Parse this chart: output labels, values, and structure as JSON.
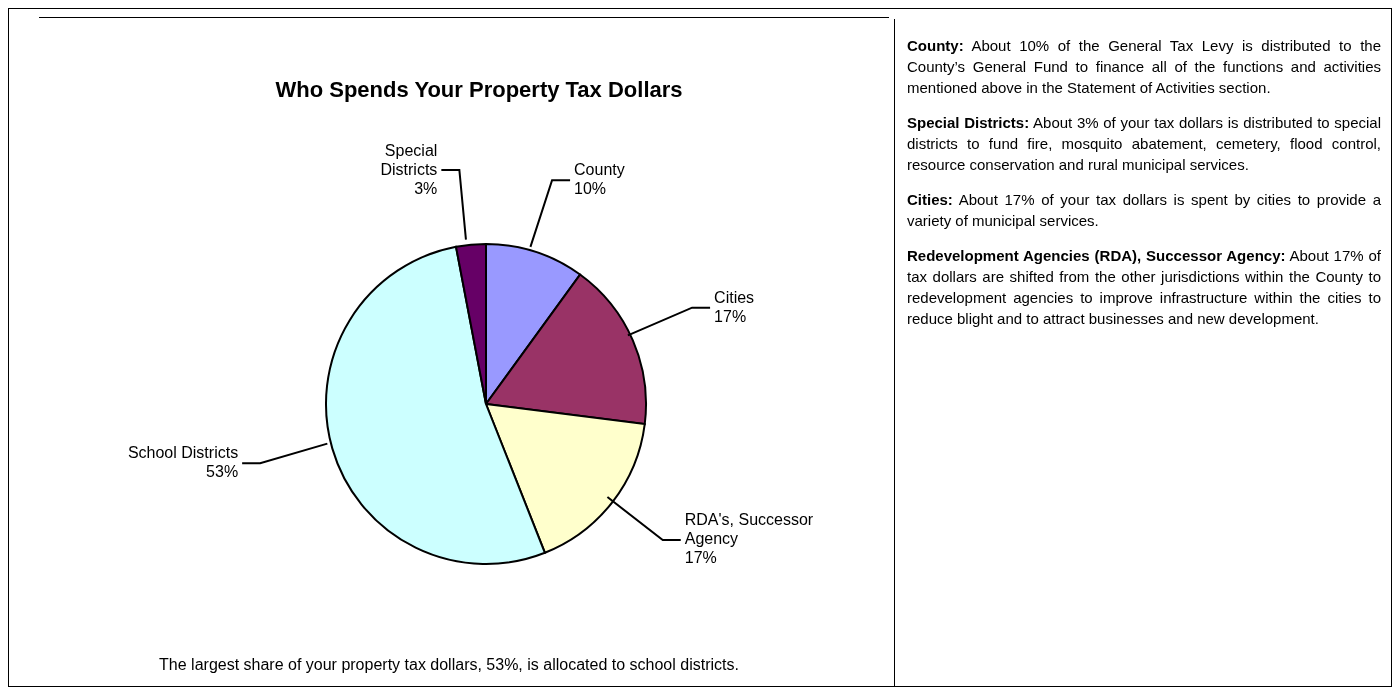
{
  "chart_data": [
    {
      "type": "pie",
      "title": "Who Spends Your Property Tax Dollars",
      "categories": [
        "County",
        "Cities",
        "RDA's, Successor Agency",
        "School Districts",
        "Special Districts"
      ],
      "values": [
        10,
        17,
        17,
        53,
        3
      ],
      "value_labels": [
        "10%",
        "17%",
        "17%",
        "53%",
        "3%"
      ],
      "colors": [
        "#9999ff",
        "#993366",
        "#ffffcc",
        "#ccffff",
        "#660066"
      ],
      "annotations": [
        "The largest share of your property tax dollars, 53%, is allocated to school districts."
      ]
    },
    {
      "type": "other",
      "annotations": [
        "County:  About 10% of the General Tax Levy is distributed to the County’s General Fund to finance all of the functions and activities mentioned above in the Statement of Activities section.",
        "Special Districts:  About 3% of your tax dollars is distributed to special districts to fund fire, mosquito abatement, cemetery, flood control, resource conservation and rural municipal services.",
        "Cities:  About 17% of your tax dollars is spent by cities to provide a variety of municipal services.",
        "Redevelopment Agencies (RDA), Successor Agency:  About 17% of tax dollars are shifted from the other jurisdictions within the County to redevelopment agencies to improve infrastructure within the cities to reduce blight and to attract businesses and new development."
      ]
    }
  ]
}
